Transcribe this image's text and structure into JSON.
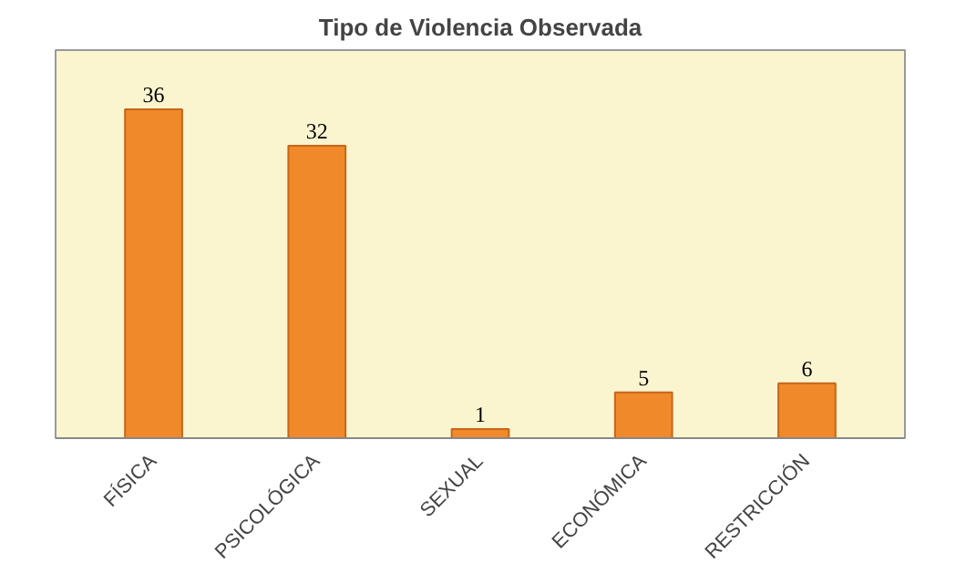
{
  "chart_data": {
    "type": "bar",
    "title": "Tipo de Violencia Observada",
    "categories": [
      "FÍSICA",
      "PSICOLÓGICA",
      "SEXUAL",
      "ECONÓMICA",
      "RESTRICCIÓN"
    ],
    "values": [
      36,
      32,
      1,
      5,
      6
    ],
    "color": "#f0892a",
    "data_labels": true
  }
}
